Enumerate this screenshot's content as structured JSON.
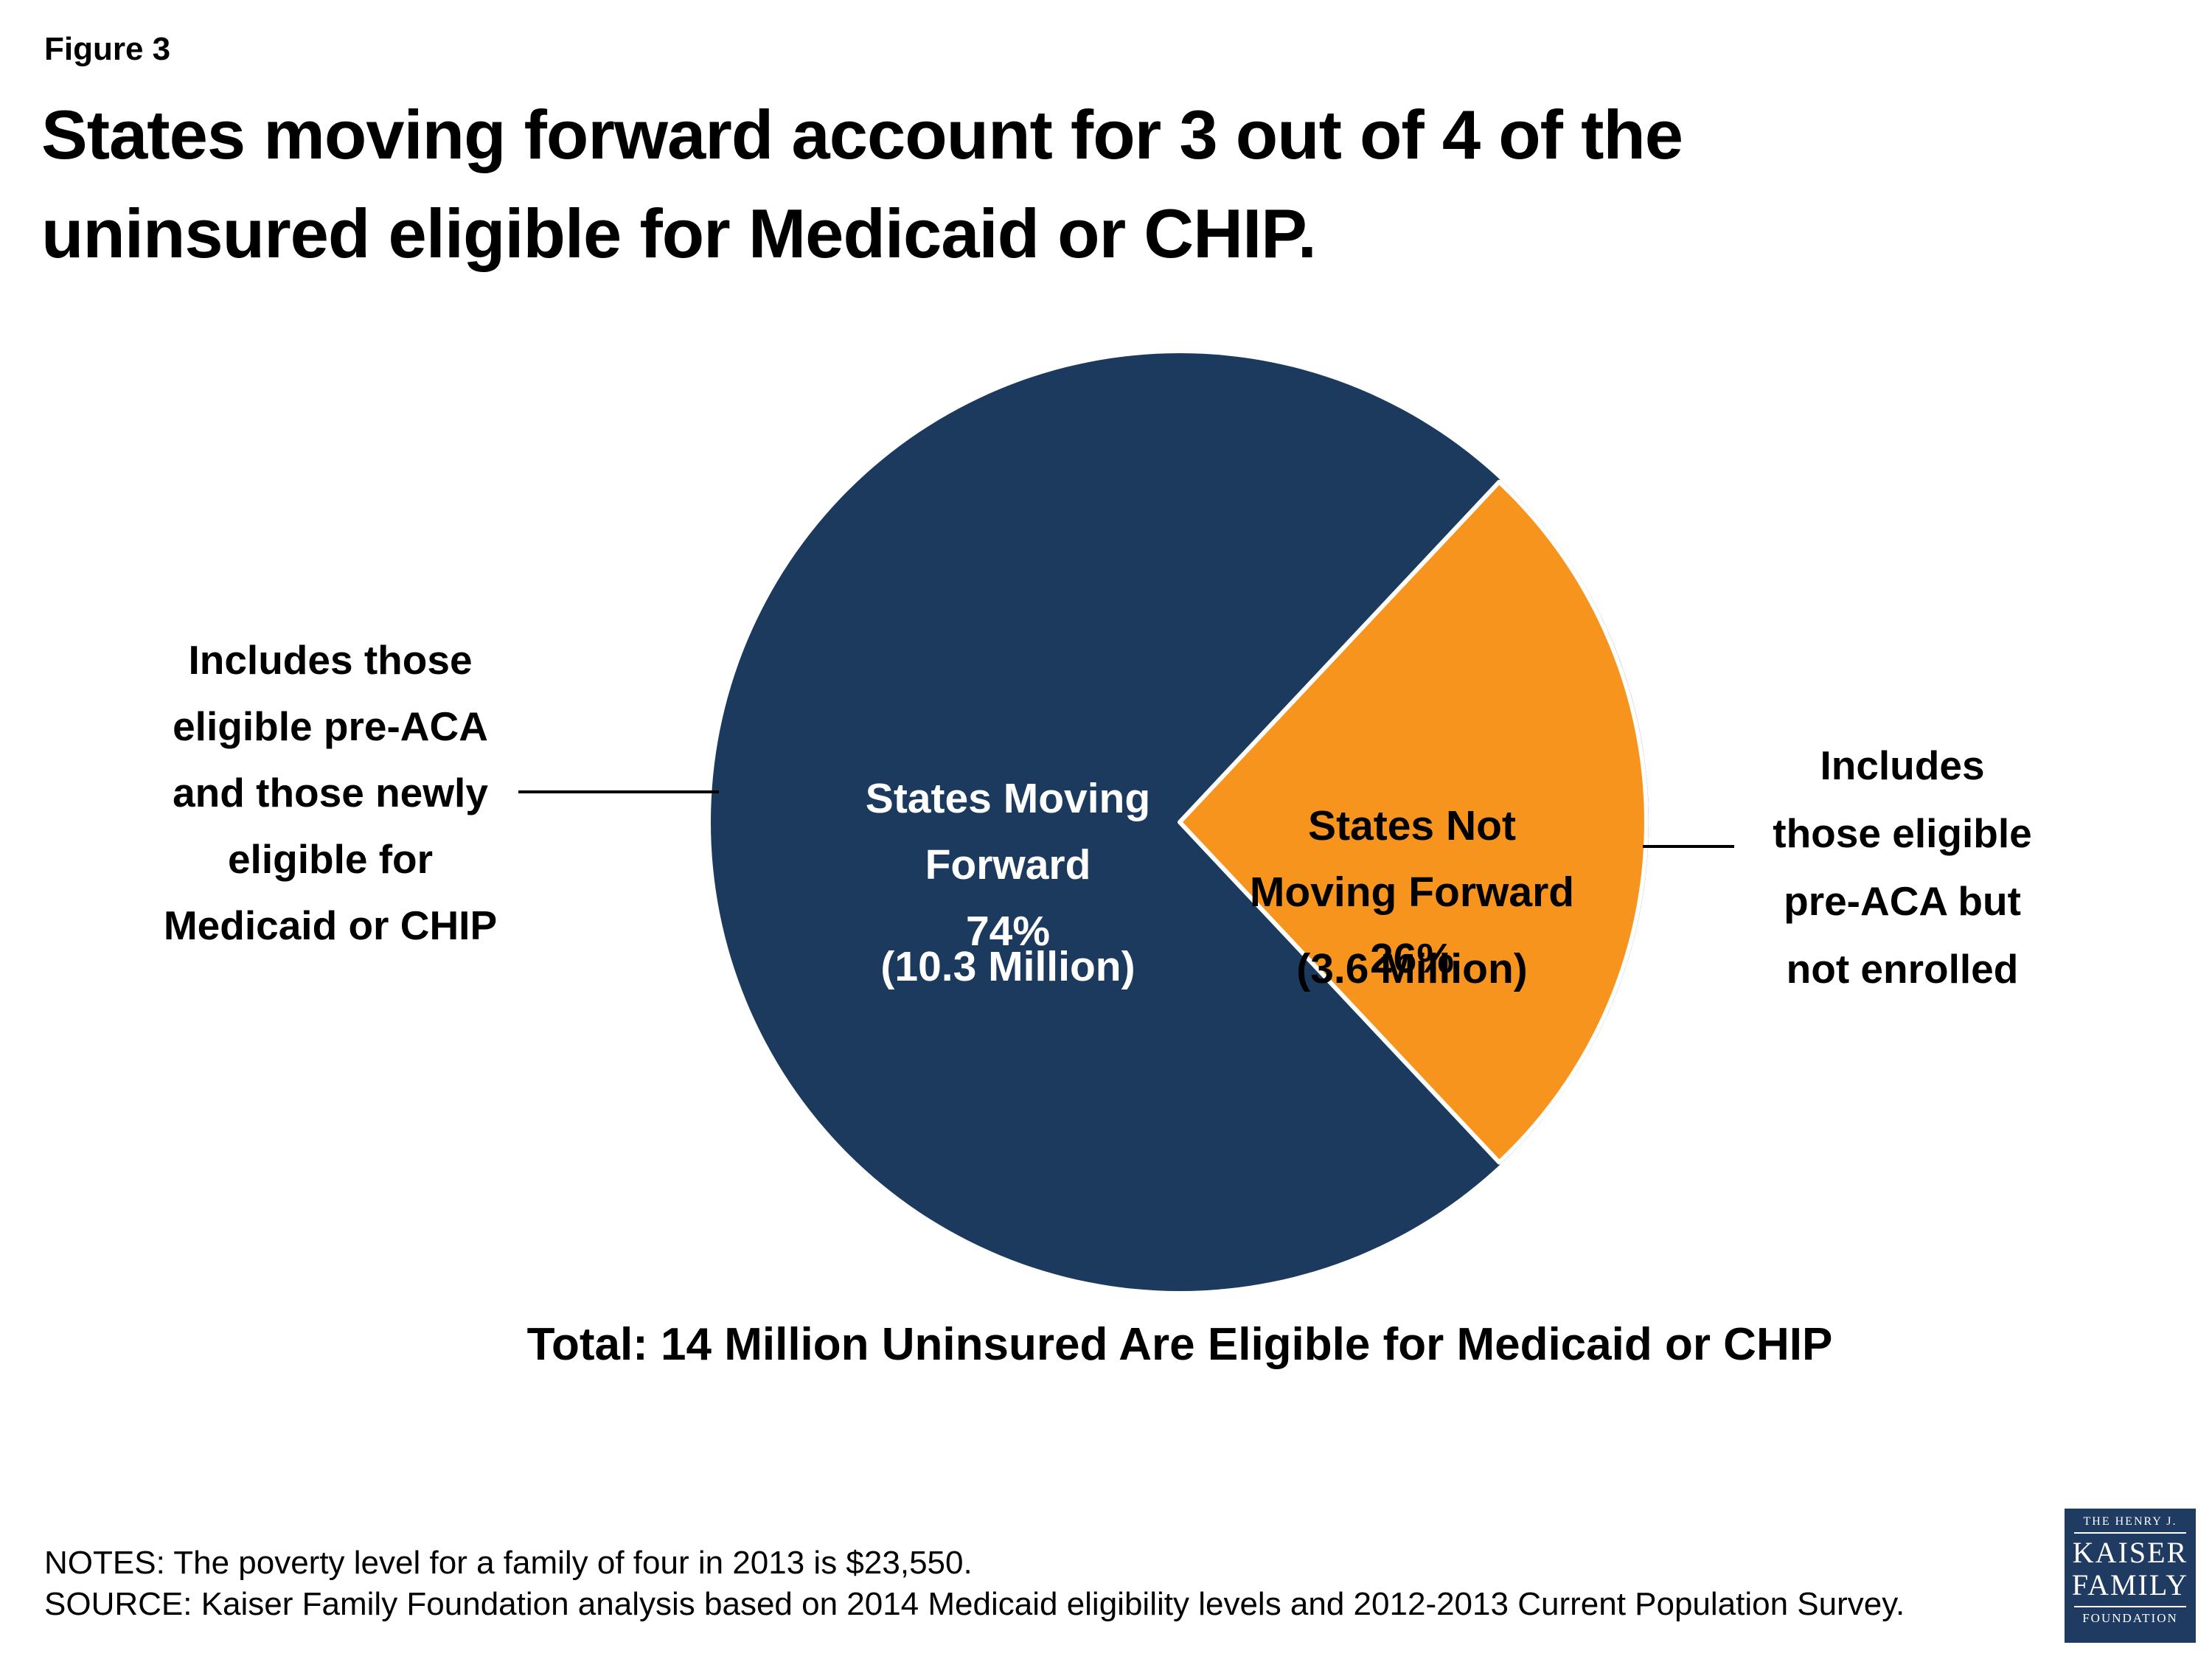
{
  "figure_label": "Figure 3",
  "title": {
    "line1": "States moving forward account for 3 out of 4 of the",
    "line2": "uninsured eligible for Medicaid or CHIP."
  },
  "chart_data": {
    "type": "pie",
    "title": "States moving forward account for 3 out of 4 of the uninsured eligible for Medicaid or CHIP.",
    "units": "percent of 14 million uninsured eligible for Medicaid or CHIP",
    "total_millions": 14,
    "total_label": "Total: 14 Million Uninsured Are Eligible for Medicaid or CHIP",
    "legend_position": "none",
    "slices": [
      {
        "label": "States Moving Forward",
        "percent": 74,
        "value_millions": 10.3,
        "value_label": "(10.3 Million)",
        "color": "#1C3A5E",
        "text_color": "#FFFFFF"
      },
      {
        "label": "States Not Moving Forward",
        "percent": 26,
        "value_millions": 3.6,
        "value_label": "(3.6 Million)",
        "color": "#F7941E",
        "text_color": "#000000"
      }
    ],
    "wedge_layout": "26% slice centered on right horizontal axis, white separator stroke"
  },
  "pie_labels": {
    "forward_lines": "States Moving\nForward\n74%",
    "forward_value": "(10.3 Million)",
    "not_forward_lines": "States Not\nMoving Forward\n26%",
    "not_forward_value": "(3.6 Million)"
  },
  "annotations": {
    "left": "Includes those\neligible pre-ACA\nand those newly\neligible for\nMedicaid or CHIP",
    "right": "Includes\nthose eligible\npre-ACA but\nnot enrolled"
  },
  "total_line": "Total: 14 Million Uninsured Are Eligible for Medicaid or CHIP",
  "notes": "NOTES: The poverty level for a family of four in 2013 is $23,550.",
  "source": "SOURCE: Kaiser Family Foundation analysis based on 2014 Medicaid eligibility levels and 2012-2013 Current Population Survey.",
  "logo": {
    "line1": "THE HENRY J.",
    "line2": "KAISER",
    "line3": "FAMILY",
    "line4": "FOUNDATION",
    "bg_color": "#1F3B62"
  },
  "colors": {
    "background": "#FFFFFF",
    "text": "#000000",
    "slice_forward": "#1C3A5E",
    "slice_not_forward": "#F7941E",
    "separator": "#FFFFFF"
  }
}
